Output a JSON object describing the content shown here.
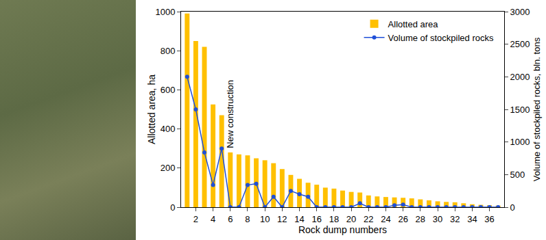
{
  "chart_data": {
    "type": "bar",
    "categories": [
      null,
      "2",
      null,
      "4",
      null,
      "6",
      null,
      "8",
      null,
      "10",
      null,
      "12",
      null,
      "14",
      null,
      "16",
      null,
      "18",
      null,
      "20",
      null,
      "22",
      null,
      "24",
      null,
      "26",
      null,
      "28",
      null,
      "30",
      null,
      "32",
      null,
      "34",
      null,
      "36",
      null
    ],
    "x_label": "Rock dump numbers",
    "y_label": "Allotted area, ha",
    "y2_label": "Volume of stockpiled rocks, bln. tons",
    "series": [
      {
        "name": "Allotted area",
        "type": "bar",
        "color": "#ffc000",
        "values": [
          990,
          850,
          820,
          525,
          470,
          280,
          270,
          265,
          250,
          240,
          225,
          195,
          165,
          145,
          125,
          115,
          100,
          95,
          85,
          78,
          75,
          60,
          55,
          52,
          50,
          48,
          45,
          40,
          35,
          30,
          27,
          25,
          20,
          15,
          12,
          10,
          8
        ]
      },
      {
        "name": "Volume of stockpiled rocks",
        "type": "line",
        "axis": "y2",
        "color": "#1f4fd8",
        "marker": "circle",
        "values": [
          2000,
          1500,
          840,
          340,
          900,
          0,
          0,
          340,
          360,
          0,
          160,
          0,
          250,
          200,
          160,
          0,
          0,
          0,
          0,
          0,
          60,
          0,
          0,
          0,
          30,
          40,
          0,
          0,
          0,
          0,
          0,
          0,
          0,
          0,
          0,
          0,
          0
        ]
      }
    ],
    "ylim": [
      0,
      1000
    ],
    "yticks": [
      0,
      200,
      400,
      600,
      800,
      1000
    ],
    "y2lim": [
      0,
      3000
    ],
    "y2ticks": [
      0,
      500,
      1000,
      1500,
      2000,
      2500,
      3000
    ],
    "annotations": [
      {
        "text": "New construction",
        "x": 5
      }
    ],
    "legend": "top right",
    "grid": false
  }
}
